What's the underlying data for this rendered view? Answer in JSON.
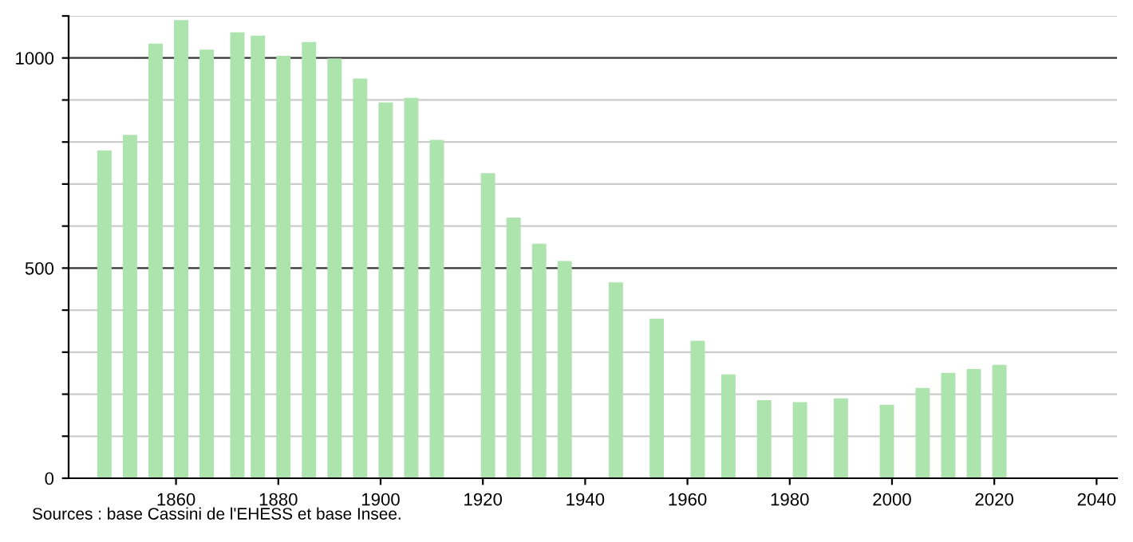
{
  "chart_data": {
    "type": "bar",
    "x": [
      1846,
      1851,
      1856,
      1861,
      1866,
      1872,
      1876,
      1881,
      1886,
      1891,
      1896,
      1901,
      1906,
      1911,
      1921,
      1926,
      1931,
      1936,
      1946,
      1954,
      1962,
      1968,
      1975,
      1982,
      1990,
      1999,
      2006,
      2011,
      2016,
      2021
    ],
    "values": [
      780,
      817,
      1034,
      1090,
      1020,
      1061,
      1053,
      1005,
      1038,
      999,
      951,
      894,
      905,
      805,
      726,
      620,
      558,
      517,
      466,
      380,
      327,
      247,
      186,
      181,
      190,
      175,
      215,
      251,
      260,
      270
    ],
    "color": "#ade3ad",
    "xlim": [
      1839,
      2044
    ],
    "xticks": [
      1860,
      1880,
      1900,
      1920,
      1940,
      1960,
      1980,
      2000,
      2020,
      2040
    ],
    "ylim": [
      0,
      1100
    ],
    "yticks": [
      0,
      {
        "value": 100,
        "label": null
      },
      {
        "value": 200,
        "label": null
      },
      {
        "value": 300,
        "label": null
      },
      {
        "value": 400,
        "label": null
      },
      500,
      {
        "value": 600,
        "label": null
      },
      {
        "value": 700,
        "label": null
      },
      {
        "value": 800,
        "label": null
      },
      {
        "value": 900,
        "label": null
      },
      1000,
      {
        "value": 1100,
        "label": null
      }
    ],
    "grid": "y",
    "annotations": [
      "Sources : base Cassini de l'EHESS et base Insee."
    ]
  }
}
